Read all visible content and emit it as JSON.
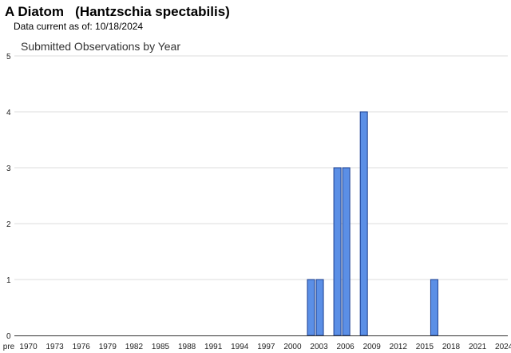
{
  "header": {
    "title": "A Diatom   (Hantzschia spectabilis)",
    "subtitle": "Data current as of: 10/18/2024"
  },
  "colors": {
    "bar_fill": "#5b8fe6",
    "bar_stroke": "#1a3d8f",
    "gridline": "#dddddd",
    "axis": "#333333"
  },
  "chart_data": {
    "type": "bar",
    "title": "Submitted Observations by Year",
    "xlabel": "",
    "ylabel": "",
    "ylim": [
      0,
      5
    ],
    "yticks": [
      0,
      1,
      2,
      3,
      4,
      5
    ],
    "grid": true,
    "legend": "none",
    "x_tick_labels": [
      "pre",
      "1970",
      "1973",
      "1976",
      "1979",
      "1982",
      "1985",
      "1988",
      "1991",
      "1994",
      "1997",
      "2000",
      "2003",
      "2006",
      "2009",
      "2012",
      "2015",
      "2018",
      "2021",
      "2024"
    ],
    "x_first_year": 1969,
    "x_last_year": 2024,
    "bars": [
      {
        "x": 2002,
        "value": 1
      },
      {
        "x": 2003,
        "value": 1
      },
      {
        "x": 2005,
        "value": 3
      },
      {
        "x": 2006,
        "value": 3
      },
      {
        "x": 2008,
        "value": 4
      },
      {
        "x": 2016,
        "value": 1
      }
    ]
  }
}
